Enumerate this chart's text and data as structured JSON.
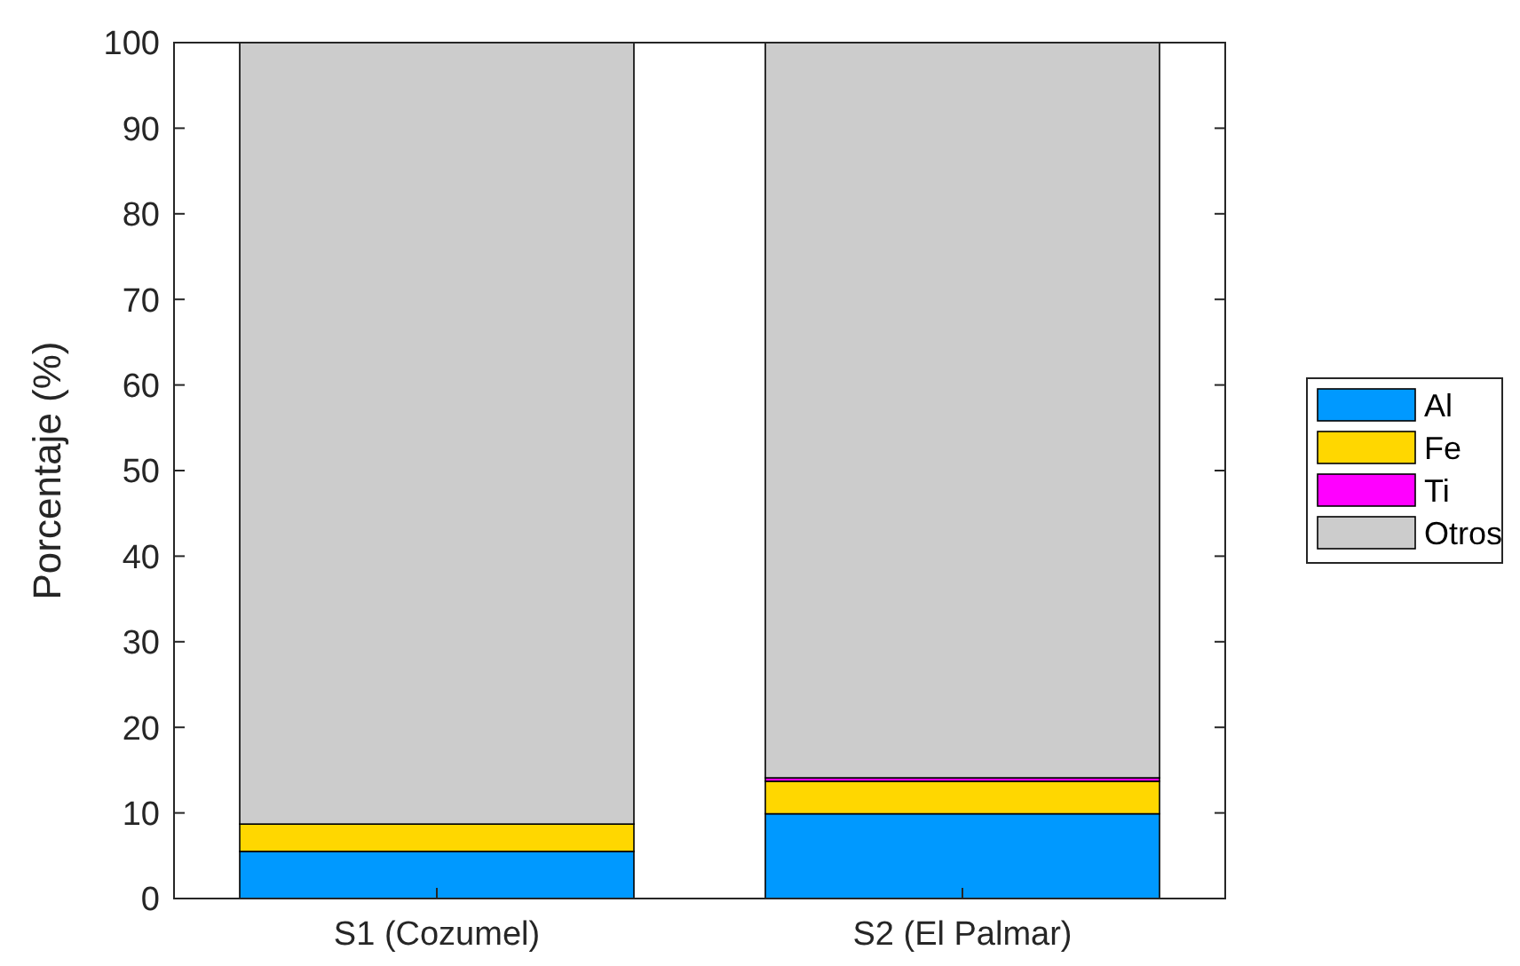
{
  "chart_data": {
    "type": "bar",
    "stacked": true,
    "ylabel": "Porcentaje (%)",
    "categories": [
      "S1 (Cozumel)",
      "S2 (El Palmar)"
    ],
    "series": [
      {
        "name": "Al",
        "color": "#0099ff",
        "values": [
          5.5,
          9.9
        ]
      },
      {
        "name": "Fe",
        "color": "#ffd700",
        "values": [
          3.2,
          3.8
        ]
      },
      {
        "name": "Ti",
        "color": "#ff00ff",
        "values": [
          null,
          0.4
        ]
      },
      {
        "name": "Otros",
        "color": "#cccccc",
        "values": [
          91.3,
          85.9
        ]
      }
    ],
    "ylim": [
      0,
      100
    ],
    "yticks": [
      0,
      10,
      20,
      30,
      40,
      50,
      60,
      70,
      80,
      90,
      100
    ],
    "legend": "right",
    "grid": false
  }
}
